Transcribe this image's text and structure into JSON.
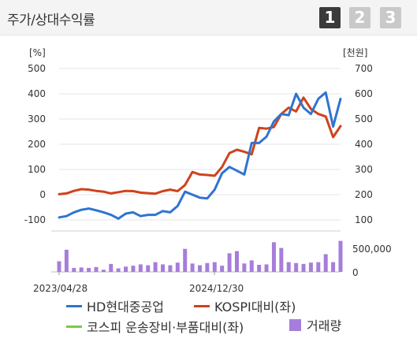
{
  "header": {
    "title": "주가/상대수익률",
    "tabs": [
      "1",
      "2",
      "3"
    ],
    "active_tab": 0
  },
  "colors": {
    "hd": "#2f74d0",
    "kospi": "#d0421b",
    "sector": "#7ac943",
    "volume": "#a77ddb"
  },
  "chart_data": {
    "type": "line",
    "left_axis_unit": "[%]",
    "right_axis_unit": "[천원]",
    "left_ticks": [
      "500",
      "400",
      "300",
      "200",
      "100",
      "0",
      "-100"
    ],
    "right_ticks": [
      "700",
      "600",
      "500",
      "400",
      "300",
      "200",
      "100"
    ],
    "ylim_left": [
      -100,
      500
    ],
    "ylim_right": [
      100,
      700
    ],
    "x_labels": [
      "2023/04/28",
      "2024/12/30"
    ],
    "volume_ticks": [
      "500,000",
      "0"
    ],
    "volume_max": 800000,
    "series": [
      {
        "name": "HD현대중공업",
        "axis": "left",
        "values": [
          -90,
          -85,
          -70,
          -60,
          -55,
          -62,
          -70,
          -80,
          -95,
          -75,
          -70,
          -85,
          -80,
          -80,
          -65,
          -70,
          -45,
          12,
          0,
          -12,
          -15,
          20,
          85,
          110,
          95,
          80,
          205,
          205,
          230,
          290,
          320,
          315,
          400,
          345,
          320,
          380,
          405,
          270,
          380
        ]
      },
      {
        "name": "KOSPI대비(좌)",
        "axis": "left",
        "values": [
          2,
          5,
          15,
          22,
          20,
          15,
          12,
          5,
          10,
          15,
          14,
          8,
          6,
          4,
          14,
          20,
          14,
          38,
          90,
          80,
          78,
          75,
          110,
          165,
          178,
          170,
          160,
          265,
          262,
          268,
          320,
          345,
          330,
          385,
          340,
          320,
          310,
          228,
          272
        ]
      },
      {
        "name": "코스피 운송장비·부품대비(좌)",
        "axis": "left",
        "values": []
      }
    ],
    "volume": {
      "name": "거래량",
      "values": [
        240000,
        500000,
        90000,
        100000,
        90000,
        110000,
        50000,
        180000,
        80000,
        120000,
        140000,
        170000,
        150000,
        220000,
        170000,
        150000,
        210000,
        520000,
        190000,
        150000,
        200000,
        220000,
        140000,
        420000,
        470000,
        190000,
        260000,
        160000,
        170000,
        670000,
        540000,
        220000,
        200000,
        180000,
        210000,
        220000,
        400000,
        220000,
        700000
      ]
    }
  }
}
